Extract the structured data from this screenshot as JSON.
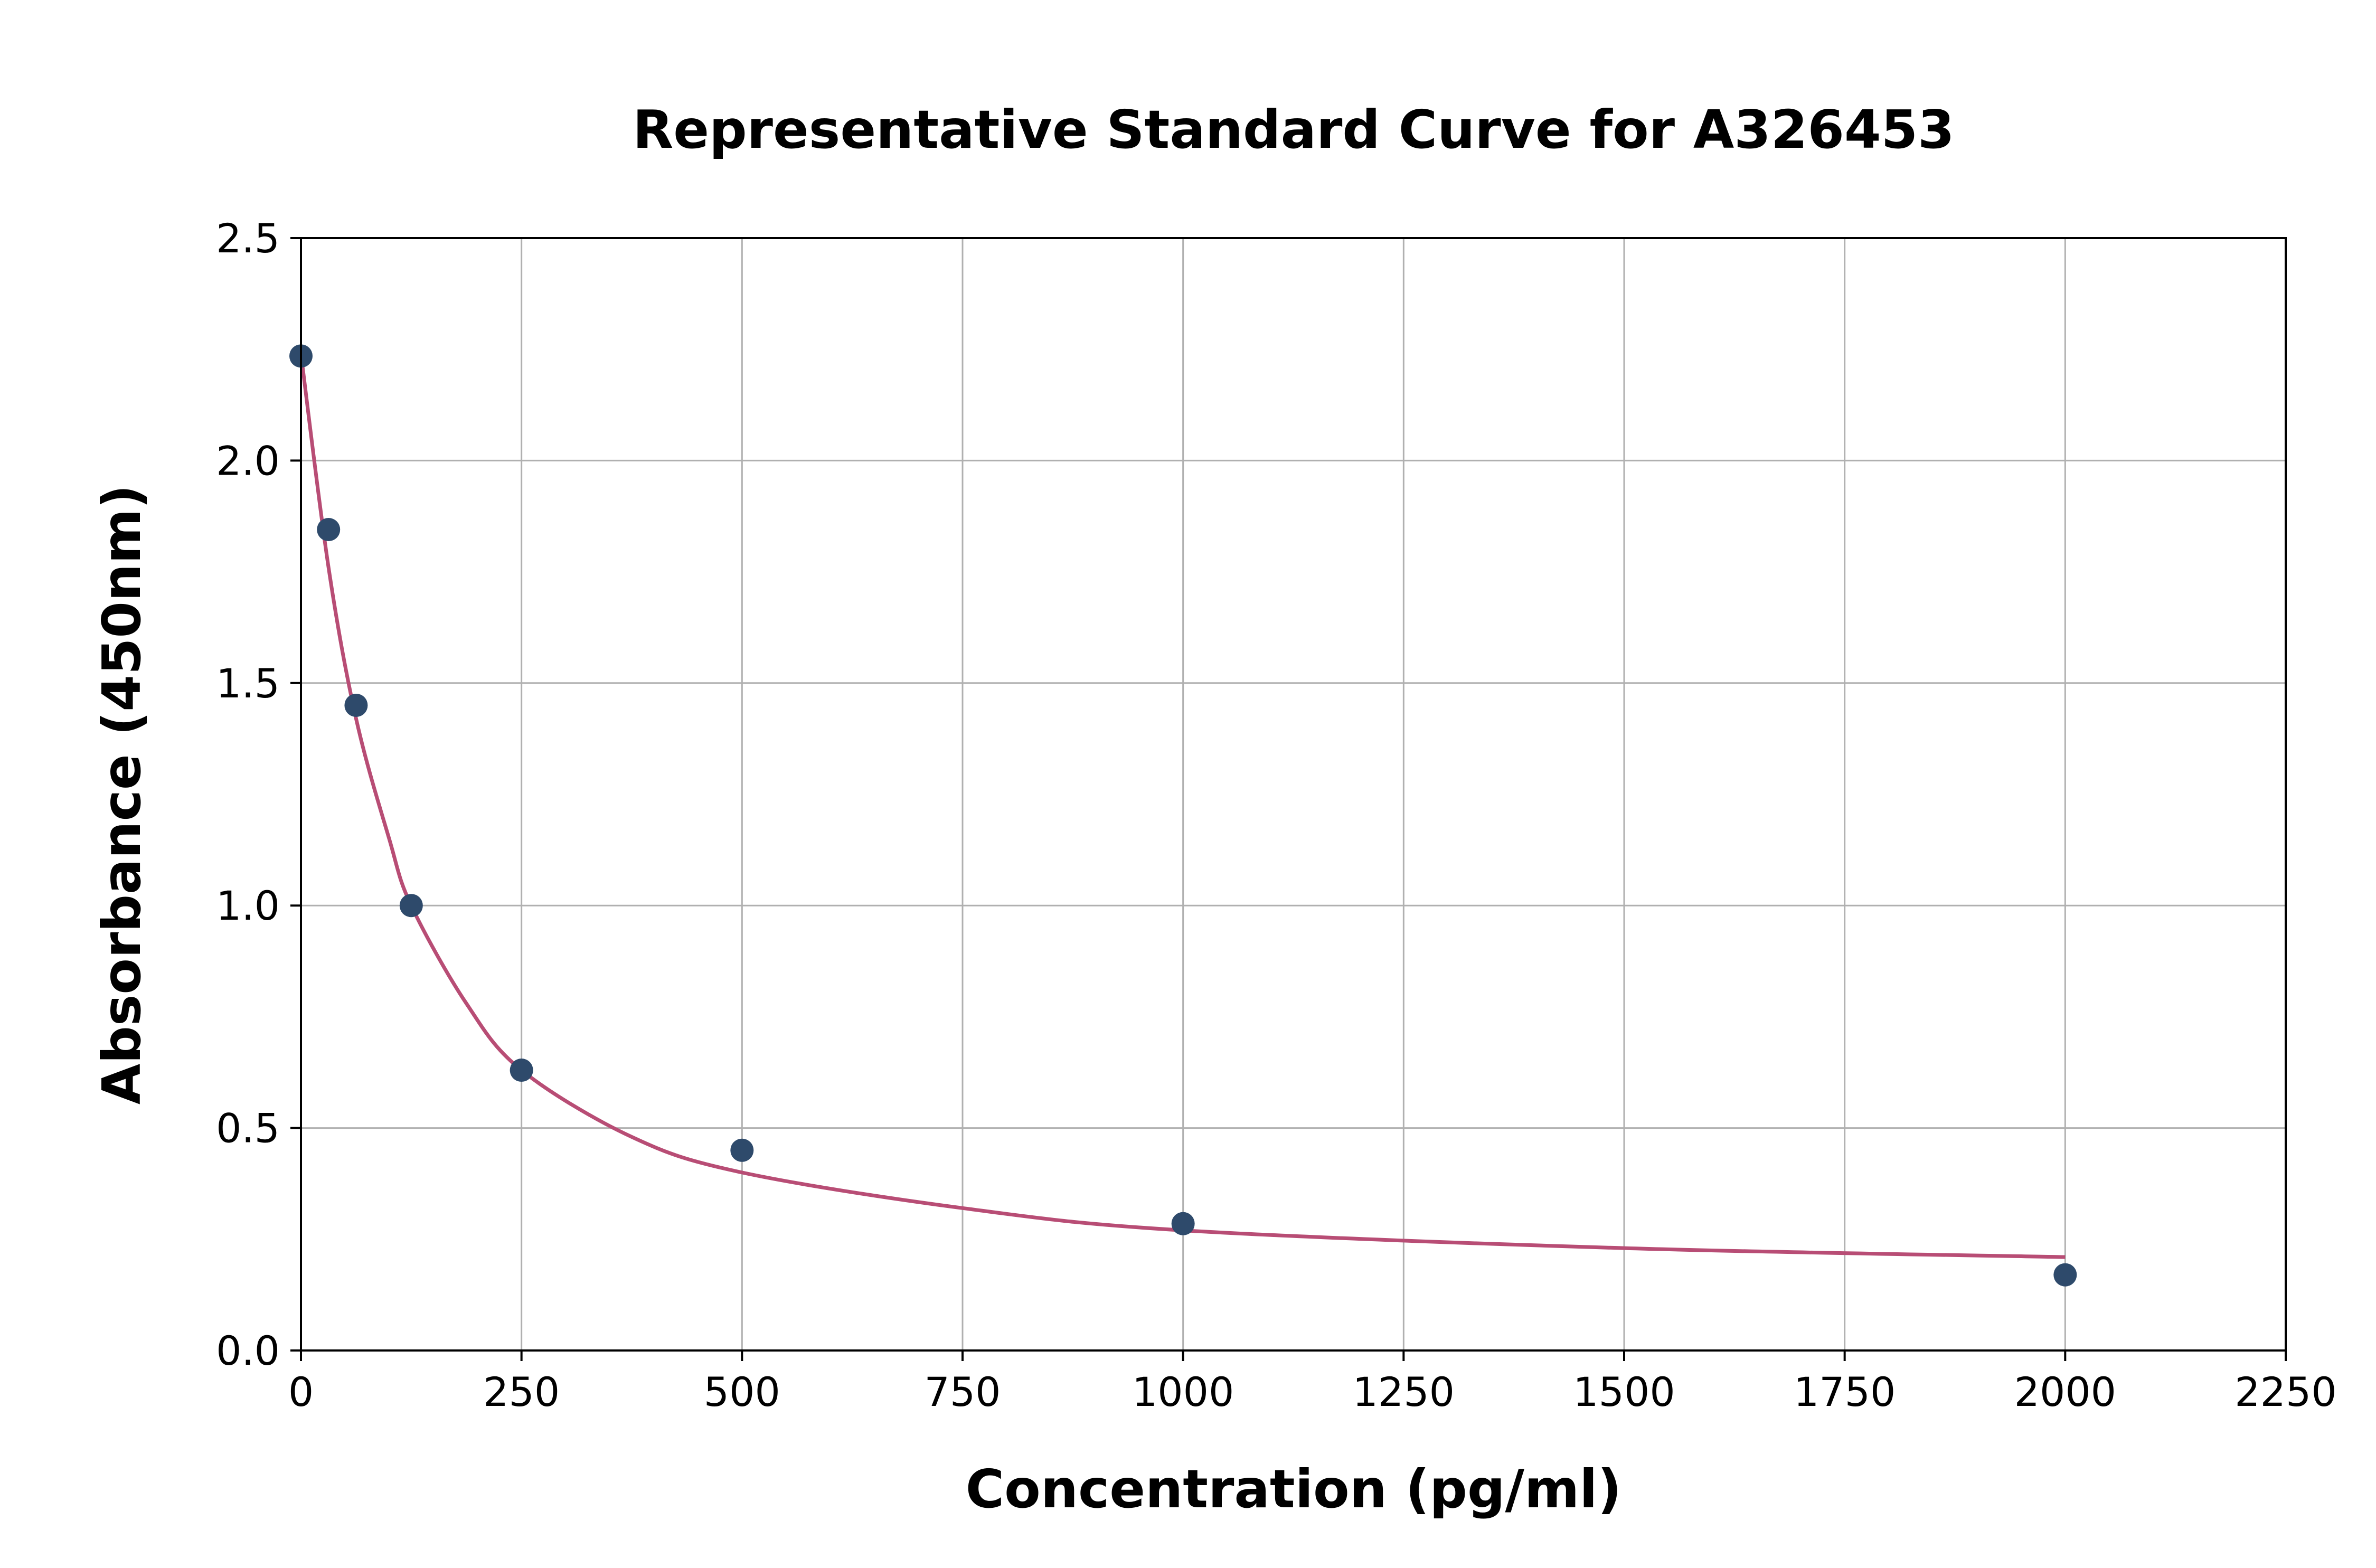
{
  "chart_data": {
    "type": "scatter",
    "title": "Representative Standard Curve for A326453",
    "xlabel": "Concentration (pg/ml)",
    "ylabel": "Absorbance (450nm)",
    "xlim": [
      0,
      2250
    ],
    "ylim": [
      0,
      2.5
    ],
    "xticks": [
      "0",
      "250",
      "500",
      "750",
      "1000",
      "1250",
      "1500",
      "1750",
      "2000",
      "2250"
    ],
    "yticks": [
      "0.0",
      "0.5",
      "1.0",
      "1.5",
      "2.0",
      "2.5"
    ],
    "grid": true,
    "points": {
      "x": [
        0,
        31.25,
        62.5,
        125,
        250,
        500,
        1000,
        2000
      ],
      "y": [
        2.235,
        1.845,
        1.45,
        1.0,
        0.63,
        0.45,
        0.285,
        0.17
      ]
    },
    "fit_curve": {
      "x": [
        0,
        31.25,
        62.5,
        100,
        125,
        187.5,
        250,
        375,
        500,
        750,
        1000,
        1500,
        2000
      ],
      "y": [
        2.24,
        1.76,
        1.42,
        1.15,
        1.0,
        0.78,
        0.63,
        0.48,
        0.4,
        0.32,
        0.27,
        0.23,
        0.21
      ]
    },
    "colors": {
      "points": "#2e4a6b",
      "curve": "#b84d75",
      "grid": "#b0b0b0"
    }
  }
}
